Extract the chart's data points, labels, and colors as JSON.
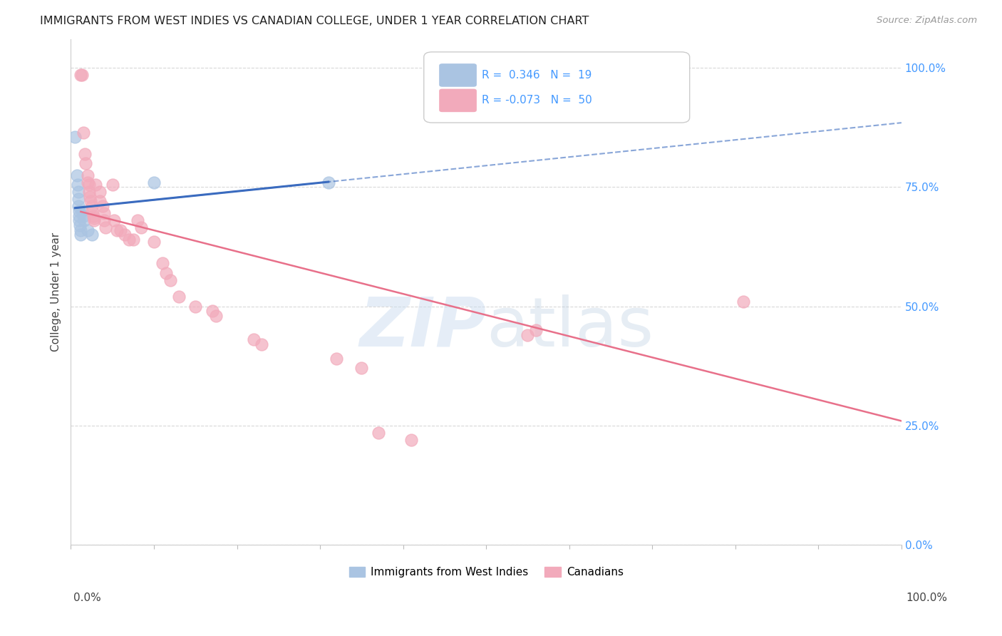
{
  "title": "IMMIGRANTS FROM WEST INDIES VS CANADIAN COLLEGE, UNDER 1 YEAR CORRELATION CHART",
  "source": "Source: ZipAtlas.com",
  "ylabel": "College, Under 1 year",
  "legend_blue_r": "0.346",
  "legend_blue_n": "19",
  "legend_pink_r": "-0.073",
  "legend_pink_n": "50",
  "legend_label_blue": "Immigrants from West Indies",
  "legend_label_pink": "Canadians",
  "watermark_zip": "ZIP",
  "watermark_atlas": "atlas",
  "blue_color": "#aac4e2",
  "pink_color": "#f2aabb",
  "blue_line_color": "#3a6bbf",
  "pink_line_color": "#e8708a",
  "blue_scatter": [
    [
      0.005,
      0.855
    ],
    [
      0.007,
      0.775
    ],
    [
      0.008,
      0.755
    ],
    [
      0.009,
      0.74
    ],
    [
      0.009,
      0.725
    ],
    [
      0.009,
      0.71
    ],
    [
      0.01,
      0.7
    ],
    [
      0.01,
      0.69
    ],
    [
      0.01,
      0.68
    ],
    [
      0.011,
      0.67
    ],
    [
      0.012,
      0.66
    ],
    [
      0.012,
      0.65
    ],
    [
      0.013,
      0.7
    ],
    [
      0.015,
      0.69
    ],
    [
      0.016,
      0.68
    ],
    [
      0.02,
      0.66
    ],
    [
      0.025,
      0.65
    ],
    [
      0.1,
      0.76
    ],
    [
      0.31,
      0.76
    ]
  ],
  "pink_scatter": [
    [
      0.012,
      0.985
    ],
    [
      0.013,
      0.985
    ],
    [
      0.015,
      0.865
    ],
    [
      0.017,
      0.82
    ],
    [
      0.018,
      0.8
    ],
    [
      0.02,
      0.775
    ],
    [
      0.02,
      0.76
    ],
    [
      0.022,
      0.755
    ],
    [
      0.022,
      0.74
    ],
    [
      0.023,
      0.73
    ],
    [
      0.024,
      0.72
    ],
    [
      0.025,
      0.71
    ],
    [
      0.025,
      0.7
    ],
    [
      0.027,
      0.69
    ],
    [
      0.028,
      0.685
    ],
    [
      0.028,
      0.68
    ],
    [
      0.03,
      0.755
    ],
    [
      0.035,
      0.74
    ],
    [
      0.035,
      0.72
    ],
    [
      0.038,
      0.71
    ],
    [
      0.04,
      0.695
    ],
    [
      0.04,
      0.68
    ],
    [
      0.042,
      0.665
    ],
    [
      0.05,
      0.755
    ],
    [
      0.052,
      0.68
    ],
    [
      0.055,
      0.66
    ],
    [
      0.06,
      0.66
    ],
    [
      0.065,
      0.65
    ],
    [
      0.07,
      0.64
    ],
    [
      0.075,
      0.64
    ],
    [
      0.08,
      0.68
    ],
    [
      0.085,
      0.665
    ],
    [
      0.1,
      0.635
    ],
    [
      0.11,
      0.59
    ],
    [
      0.115,
      0.57
    ],
    [
      0.12,
      0.555
    ],
    [
      0.13,
      0.52
    ],
    [
      0.15,
      0.5
    ],
    [
      0.17,
      0.49
    ],
    [
      0.175,
      0.48
    ],
    [
      0.22,
      0.43
    ],
    [
      0.23,
      0.42
    ],
    [
      0.32,
      0.39
    ],
    [
      0.35,
      0.37
    ],
    [
      0.37,
      0.235
    ],
    [
      0.41,
      0.22
    ],
    [
      0.55,
      0.44
    ],
    [
      0.56,
      0.45
    ],
    [
      0.7,
      0.975
    ],
    [
      0.81,
      0.51
    ]
  ],
  "xlim": [
    0.0,
    1.0
  ],
  "ylim": [
    0.0,
    1.06
  ],
  "yticks": [
    0.0,
    0.25,
    0.5,
    0.75,
    1.0
  ],
  "ytick_labels": [
    "0.0%",
    "25.0%",
    "50.0%",
    "75.0%",
    "100.0%"
  ],
  "xtick_count": 10,
  "grid_color": "#d8d8d8",
  "bg_color": "#ffffff"
}
